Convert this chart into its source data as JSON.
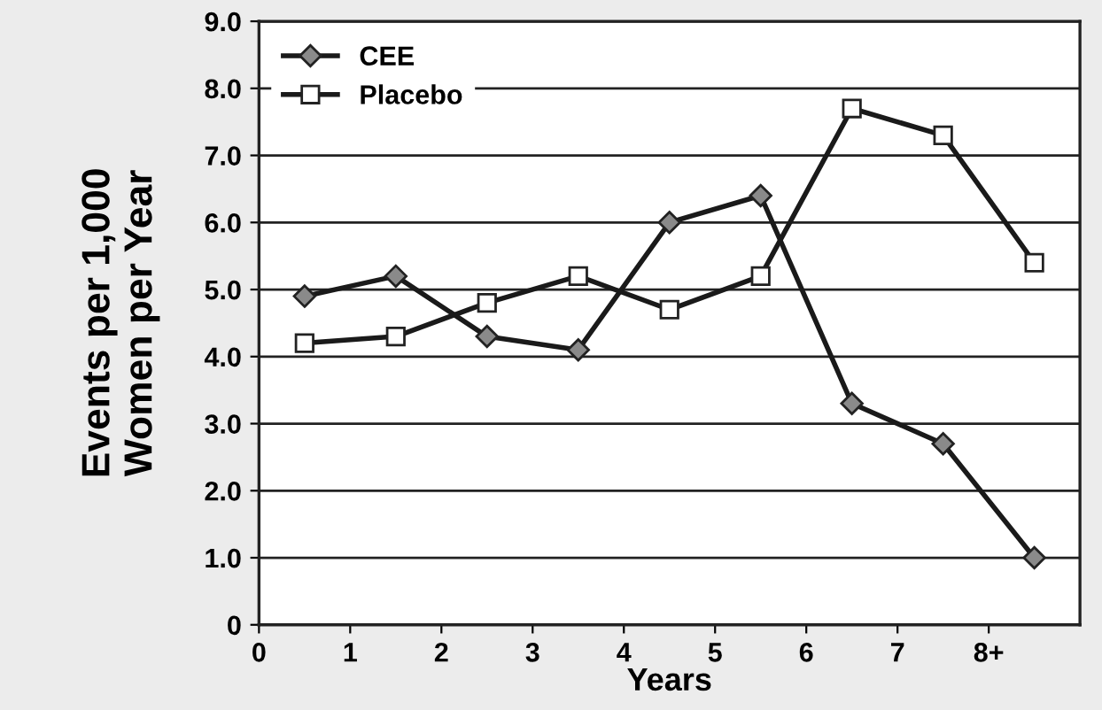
{
  "chart_data": {
    "type": "line",
    "xlabel": "Years",
    "ylabel": "Events per 1,000\nWomen per Year",
    "x": [
      0.5,
      1.5,
      2.5,
      3.5,
      4.5,
      5.5,
      6.5,
      7.5,
      8.5
    ],
    "series": [
      {
        "name": "CEE",
        "color": "#1a1a1a",
        "marker": "diamond",
        "values": [
          4.9,
          5.2,
          4.3,
          4.1,
          6.0,
          6.4,
          3.3,
          2.7,
          1.0
        ]
      },
      {
        "name": "Placebo",
        "color": "#1a1a1a",
        "marker": "square",
        "values": [
          4.2,
          4.3,
          4.8,
          5.2,
          4.7,
          5.2,
          7.7,
          7.3,
          5.4
        ]
      }
    ],
    "xlim": [
      0,
      9
    ],
    "xticks": [
      0,
      1,
      2,
      3,
      4,
      5,
      6,
      7,
      {
        "value": 8,
        "label": "8+"
      }
    ],
    "ylim": [
      0,
      9
    ],
    "yticks": [
      {
        "value": 0,
        "label": "0"
      },
      {
        "value": 1,
        "label": "1.0"
      },
      {
        "value": 2,
        "label": "2.0"
      },
      {
        "value": 3,
        "label": "3.0"
      },
      {
        "value": 4,
        "label": "4.0"
      },
      {
        "value": 5,
        "label": "5.0"
      },
      {
        "value": 6,
        "label": "6.0"
      },
      {
        "value": 7,
        "label": "7.0"
      },
      {
        "value": 8,
        "label": "8.0"
      },
      {
        "value": 9,
        "label": "9.0"
      }
    ],
    "grid": "y",
    "legend": "top left",
    "line_style": "solid"
  }
}
